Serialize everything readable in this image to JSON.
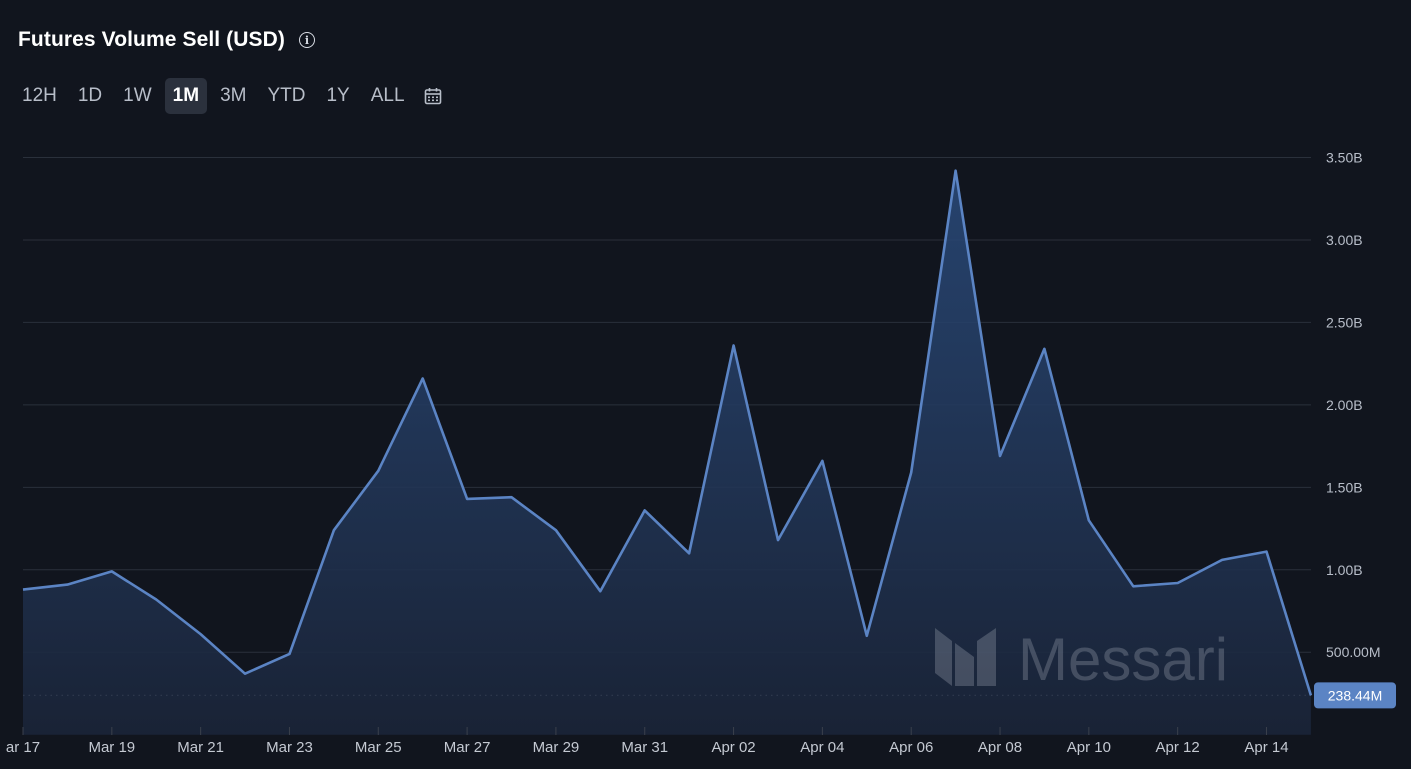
{
  "header": {
    "title": "Futures Volume Sell (USD)",
    "info_icon": "info-icon"
  },
  "ranges": {
    "items": [
      "12H",
      "1D",
      "1W",
      "1M",
      "3M",
      "YTD",
      "1Y",
      "ALL"
    ],
    "active": "1M",
    "calendar_icon": "calendar-icon"
  },
  "watermark": "Messari",
  "colors": {
    "background": "#11151e",
    "line": "#5b84c4",
    "badge": "#5b84c4",
    "grid": "#2a303b"
  },
  "chart_data": {
    "type": "area",
    "y_ticks": [
      "500.00M",
      "1.00B",
      "1.50B",
      "2.00B",
      "2.50B",
      "3.00B",
      "3.50B"
    ],
    "y_tick_values": [
      500000000,
      1000000000,
      1500000000,
      2000000000,
      2500000000,
      3000000000,
      3500000000
    ],
    "x_tick_labels": [
      "ar 17",
      "Mar 19",
      "Mar 21",
      "Mar 23",
      "Mar 25",
      "Mar 27",
      "Mar 29",
      "Mar 31",
      "Apr 02",
      "Apr 04",
      "Apr 06",
      "Apr 08",
      "Apr 10",
      "Apr 12",
      "Apr 14"
    ],
    "x": [
      "Mar 17",
      "Mar 18",
      "Mar 19",
      "Mar 20",
      "Mar 21",
      "Mar 22",
      "Mar 23",
      "Mar 24",
      "Mar 25",
      "Mar 26",
      "Mar 27",
      "Mar 28",
      "Mar 29",
      "Mar 30",
      "Mar 31",
      "Apr 01",
      "Apr 02",
      "Apr 03",
      "Apr 04",
      "Apr 05",
      "Apr 06",
      "Apr 07",
      "Apr 08",
      "Apr 09",
      "Apr 10",
      "Apr 11",
      "Apr 12",
      "Apr 13",
      "Apr 14",
      "Apr 15"
    ],
    "values": [
      880000000,
      910000000,
      990000000,
      820000000,
      610000000,
      370000000,
      490000000,
      1240000000,
      1600000000,
      2160000000,
      1430000000,
      1440000000,
      1240000000,
      870000000,
      1360000000,
      1100000000,
      2360000000,
      1180000000,
      1660000000,
      600000000,
      1590000000,
      3420000000,
      1690000000,
      2340000000,
      1300000000,
      900000000,
      920000000,
      1060000000,
      1110000000,
      238440000
    ],
    "current_value_label": "238.44M",
    "ylim": [
      0,
      3500000000
    ],
    "grid": true,
    "legend": "none"
  }
}
